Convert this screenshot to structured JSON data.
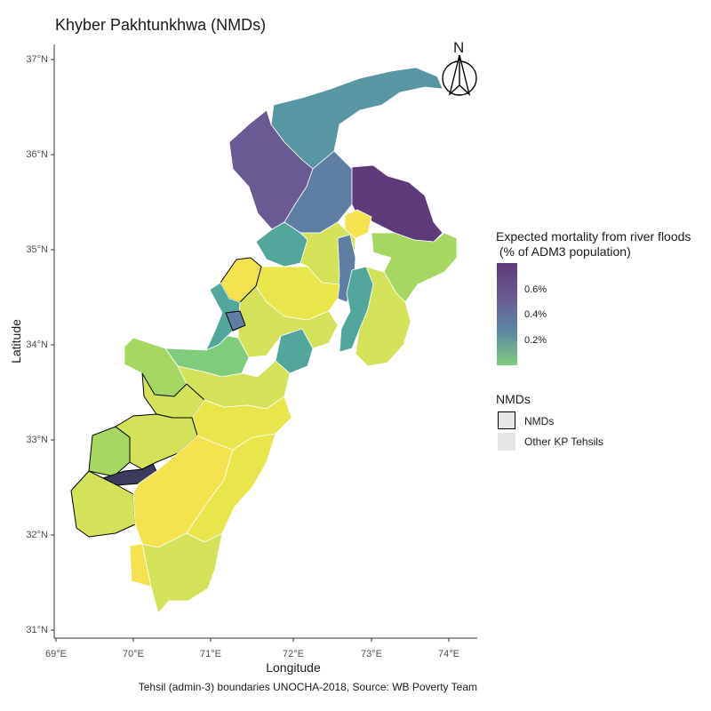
{
  "title": "Khyber Pakhtunkhwa (NMDs)",
  "axes": {
    "xlabel": "Longitude",
    "ylabel": "Latitude",
    "x_ticks": [
      "69°E",
      "70°E",
      "71°E",
      "72°E",
      "73°E",
      "74°E"
    ],
    "y_ticks": [
      "37°N",
      "36°N",
      "35°N",
      "34°N",
      "33°N",
      "32°N",
      "31°N"
    ]
  },
  "legend_fill": {
    "title": "Expected mortality from river floods\n (% of ADM3 population)",
    "labels": [
      "0.6%",
      "0.4%",
      "0.2%"
    ],
    "colors": [
      "#5e3a7a",
      "#6a5a93",
      "#5d87a3",
      "#7fcc7c"
    ]
  },
  "legend_nmd": {
    "title": "NMDs",
    "items": [
      {
        "label": "NMDs",
        "fill": "#e6e6e6",
        "outline": "#000000"
      },
      {
        "label": "Other KP Tehsils",
        "fill": "#e6e6e6",
        "outline": "none"
      }
    ]
  },
  "north_arrow": "N",
  "caption": "Tehsil (admin-3) boundaries UNOCHA-2018, Source: WB Poverty Team",
  "palette": {
    "yellow": "#f4e34f",
    "light_yellow": "#e8e64a",
    "yellow_green": "#d4e25a",
    "light_green": "#a6d762",
    "green": "#7fcc7c",
    "teal": "#52a69c",
    "blue_teal": "#5996a4",
    "blue": "#5f7ea4",
    "purple": "#6a5a93",
    "dark_purple": "#5e3a7a",
    "dark": "#3b3b5e"
  }
}
